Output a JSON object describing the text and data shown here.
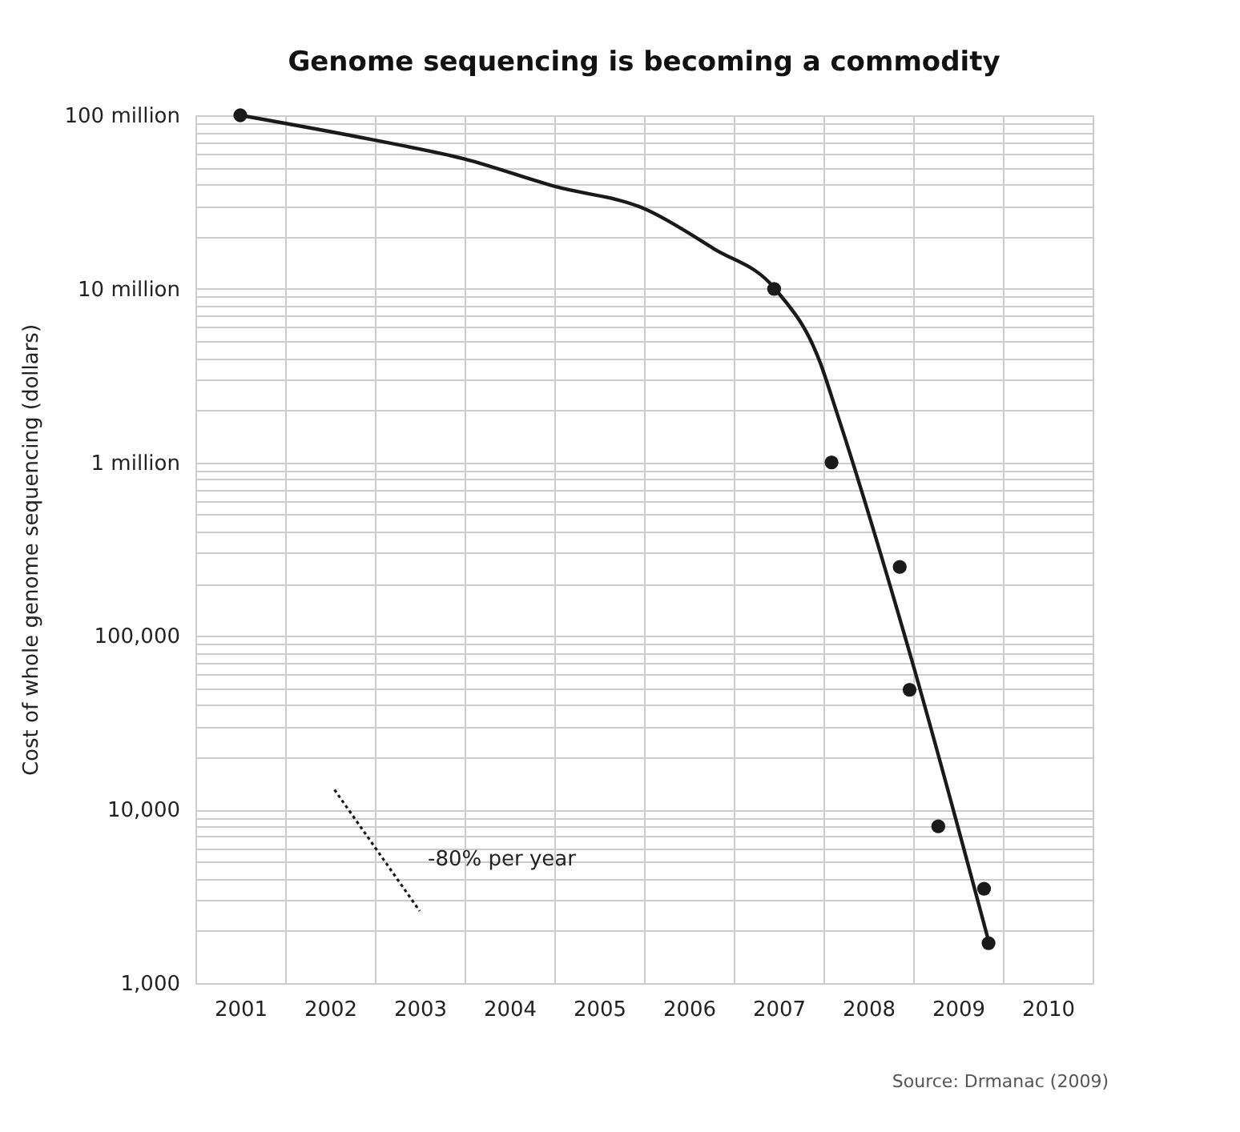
{
  "chart_data": {
    "type": "scatter",
    "title": "Genome sequencing is becoming a commodity",
    "ylabel": "Cost of whole genome sequencing (dollars)",
    "log": "y",
    "grid": true,
    "legend": false,
    "marker": "circle",
    "xlim": [
      2000.5,
      2010.5
    ],
    "xticks": [
      {
        "value": 2000.5,
        "label": null
      },
      2001,
      {
        "value": 2001.5,
        "label": null
      },
      2002,
      {
        "value": 2002.5,
        "label": null
      },
      2003,
      {
        "value": 2003.5,
        "label": null
      },
      2004,
      {
        "value": 2004.5,
        "label": null
      },
      2005,
      {
        "value": 2005.5,
        "label": null
      },
      2006,
      {
        "value": 2006.5,
        "label": null
      },
      2007,
      {
        "value": 2007.5,
        "label": null
      },
      2008,
      {
        "value": 2008.5,
        "label": null
      },
      2009,
      {
        "value": 2009.5,
        "label": null
      },
      2010,
      {
        "value": 2010.5,
        "label": null
      }
    ],
    "ylim": [
      1000,
      100000000
    ],
    "yticks": [
      {
        "value": 1000,
        "label": "1,000"
      },
      {
        "value": 2000,
        "label": null
      },
      {
        "value": 3000,
        "label": null
      },
      {
        "value": 4000,
        "label": null
      },
      {
        "value": 5000,
        "label": null
      },
      {
        "value": 6000,
        "label": null
      },
      {
        "value": 7000,
        "label": null
      },
      {
        "value": 8000,
        "label": null
      },
      {
        "value": 9000,
        "label": null
      },
      {
        "value": 10000,
        "label": "10,000"
      },
      {
        "value": 20000,
        "label": null
      },
      {
        "value": 30000,
        "label": null
      },
      {
        "value": 40000,
        "label": null
      },
      {
        "value": 50000,
        "label": null
      },
      {
        "value": 60000,
        "label": null
      },
      {
        "value": 70000,
        "label": null
      },
      {
        "value": 80000,
        "label": null
      },
      {
        "value": 90000,
        "label": null
      },
      {
        "value": 100000,
        "label": "100,000"
      },
      {
        "value": 200000,
        "label": null
      },
      {
        "value": 300000,
        "label": null
      },
      {
        "value": 400000,
        "label": null
      },
      {
        "value": 500000,
        "label": null
      },
      {
        "value": 600000,
        "label": null
      },
      {
        "value": 700000,
        "label": null
      },
      {
        "value": 800000,
        "label": null
      },
      {
        "value": 900000,
        "label": null
      },
      {
        "value": 1000000,
        "label": "1 million"
      },
      {
        "value": 2000000,
        "label": null
      },
      {
        "value": 3000000,
        "label": null
      },
      {
        "value": 4000000,
        "label": null
      },
      {
        "value": 5000000,
        "label": null
      },
      {
        "value": 6000000,
        "label": null
      },
      {
        "value": 7000000,
        "label": null
      },
      {
        "value": 8000000,
        "label": null
      },
      {
        "value": 9000000,
        "label": null
      },
      {
        "value": 10000000,
        "label": "10 million"
      },
      {
        "value": 20000000,
        "label": null
      },
      {
        "value": 30000000,
        "label": null
      },
      {
        "value": 40000000,
        "label": null
      },
      {
        "value": 50000000,
        "label": null
      },
      {
        "value": 60000000,
        "label": null
      },
      {
        "value": 70000000,
        "label": null
      },
      {
        "value": 80000000,
        "label": null
      },
      {
        "value": 90000000,
        "label": null
      },
      {
        "value": 100000000,
        "label": "100 million"
      }
    ],
    "series": [
      {
        "type": "line",
        "marker": "none",
        "line_style": "solid",
        "color": "#1a1a1a",
        "x": [
          2001,
          2002.49,
          2003.5,
          2004.5,
          2005.5,
          2006.28,
          2006.96,
          2007.46,
          2007.64,
          2008.47,
          2009.34
        ],
        "values": [
          100000000,
          72000000,
          56000000,
          39000000,
          29000000,
          17000000,
          10000000,
          3800000,
          2000000,
          77000,
          1750
        ]
      },
      {
        "type": "line",
        "marker": "none",
        "line_style": "dotted",
        "color": "#1a1a1a",
        "x": [
          2002.05,
          2003.0
        ],
        "values": [
          13000,
          2600
        ]
      },
      {
        "type": "scatter",
        "color": "#1a1a1a",
        "x": [
          2001,
          2006.95,
          2007.59,
          2008.35,
          2008.46,
          2008.78,
          2009.29,
          2009.34
        ],
        "values": [
          100000000,
          10000000,
          1000000,
          250000,
          49000,
          8000,
          3500,
          1700
        ]
      }
    ],
    "annotations": [
      "-80% per year",
      "Source: Drmanac (2009)"
    ]
  }
}
